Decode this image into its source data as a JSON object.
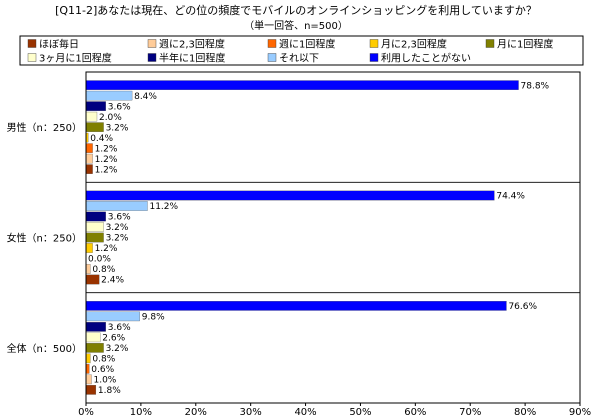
{
  "chart_data": {
    "type": "bar",
    "orientation": "horizontal",
    "title": "[Q11-2]あなたは現在、どの位の頻度でモバイルのオンラインショッピングを利用していますか？",
    "subtitle": "（単一回答、n=500）",
    "categories": [
      "男性（n：250）",
      "女性（n：250）",
      "全体（n：500）"
    ],
    "series": [
      {
        "name": "ほぼ毎日",
        "color": "#993300",
        "values": [
          1.2,
          2.4,
          1.8
        ]
      },
      {
        "name": "週に2,3回程度",
        "color": "#FFCC99",
        "values": [
          1.2,
          0.8,
          1.0
        ]
      },
      {
        "name": "週に1回程度",
        "color": "#FF6600",
        "values": [
          1.2,
          0.0,
          0.6
        ]
      },
      {
        "name": "月に2,3回程度",
        "color": "#FFCC00",
        "values": [
          0.4,
          1.2,
          0.8
        ]
      },
      {
        "name": "月に1回程度",
        "color": "#808000",
        "values": [
          3.2,
          3.2,
          3.2
        ]
      },
      {
        "name": "3ヶ月に1回程度",
        "color": "#FFFFCC",
        "values": [
          2.0,
          3.2,
          2.6
        ]
      },
      {
        "name": "半年に1回程度",
        "color": "#000080",
        "values": [
          3.6,
          3.6,
          3.6
        ]
      },
      {
        "name": "それ以下",
        "color": "#99CCFF",
        "values": [
          8.4,
          11.2,
          9.8
        ]
      },
      {
        "name": "利用したことがない",
        "color": "#0000FF",
        "values": [
          78.8,
          74.4,
          76.6
        ]
      }
    ],
    "xlim": [
      0,
      90
    ],
    "xticks": [
      0,
      10,
      20,
      30,
      40,
      50,
      60,
      70,
      80,
      90
    ],
    "tick_suffix": "%",
    "data_label_suffix": "%",
    "legend_position": "top",
    "grid": false
  }
}
